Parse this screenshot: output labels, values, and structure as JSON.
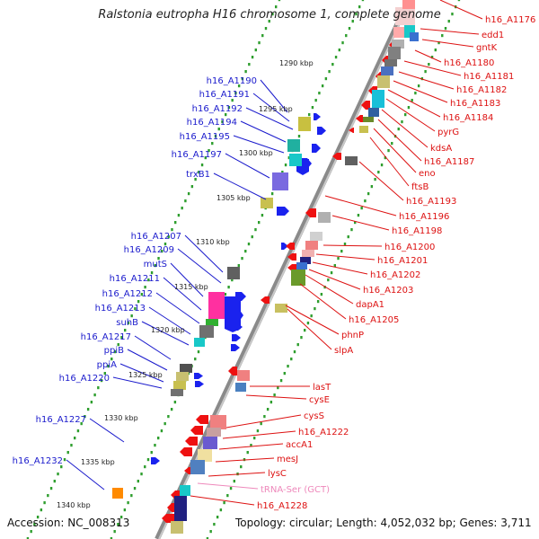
{
  "title": "Ralstonia eutropha H16 chromosome 1, complete genome",
  "footer": {
    "accession": "Accession: NC_008313",
    "summary": "Topology: circular; Length: 4,052,032 bp; Genes: 3,711"
  },
  "colors": {
    "forward_label": "#1a1acc",
    "reverse_label": "#dd1111",
    "rna_label": "#ee88bb",
    "backbone": "#8a8a8a",
    "dots": "#2e9e2e"
  },
  "kbp_ticks": [
    "1290 kbp",
    "1295 kbp",
    "1300 kbp",
    "1305 kbp",
    "1310 kbp",
    "1315 kbp",
    "1320 kbp",
    "1325 kbp",
    "1330 kbp",
    "1335 kbp",
    "1340 kbp"
  ],
  "left_genes": [
    "h16_A1190",
    "h16_A1191",
    "h16_A1192",
    "h16_A1194",
    "h16_A1195",
    "h16_A1197",
    "trxB1",
    "h16_A1207",
    "h16_A1209",
    "mutS",
    "h16_A1211",
    "h16_A1212",
    "h16_A1213",
    "suhB",
    "h16_A1217",
    "ppiB",
    "ppiA",
    "h16_A1220",
    "h16_A1227",
    "h16_A1232"
  ],
  "right_genes": [
    "h16_A1176",
    "edd1",
    "gntK",
    "h16_A1180",
    "h16_A1181",
    "h16_A1182",
    "h16_A1183",
    "h16_A1184",
    "pyrG",
    "kdsA",
    "h16_A1187",
    "eno",
    "ftsB",
    "h16_A1193",
    "h16_A1196",
    "h16_A1198",
    "h16_A1200",
    "h16_A1201",
    "h16_A1202",
    "h16_A1203",
    "dapA1",
    "h16_A1205",
    "phnP",
    "slpA",
    "lasT",
    "cysE",
    "cysS",
    "h16_A1222",
    "accA1",
    "mesJ",
    "lysC",
    "tRNA-Ser (GCT)",
    "h16_A1228"
  ]
}
